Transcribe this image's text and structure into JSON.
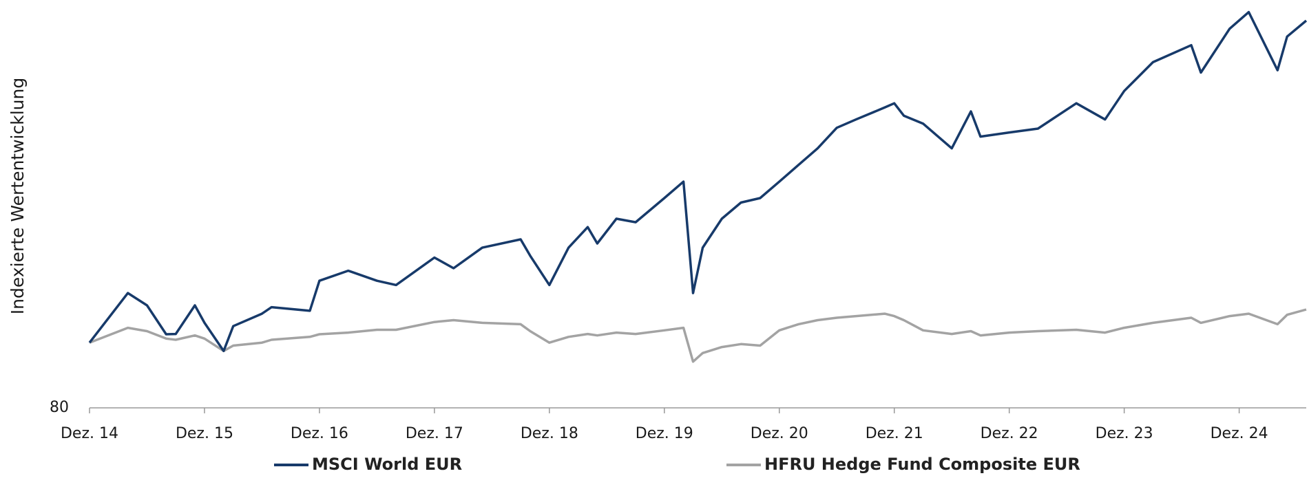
{
  "chart_data": {
    "type": "line",
    "y_label": "Indexierte Wertentwicklung",
    "log_scale": true,
    "grid": false,
    "legend_position": "bottom",
    "x": [
      "2014-12",
      "2015-04",
      "2015-06",
      "2015-08",
      "2015-09",
      "2015-11",
      "2015-12",
      "2016-02",
      "2016-03",
      "2016-06",
      "2016-07",
      "2016-11",
      "2016-12",
      "2017-03",
      "2017-06",
      "2017-08",
      "2017-12",
      "2018-02",
      "2018-05",
      "2018-09",
      "2018-10",
      "2018-12",
      "2019-02",
      "2019-04",
      "2019-05",
      "2019-07",
      "2019-09",
      "2019-12",
      "2020-02",
      "2020-03",
      "2020-04",
      "2020-06",
      "2020-08",
      "2020-10",
      "2020-12",
      "2021-02",
      "2021-04",
      "2021-06",
      "2021-08",
      "2021-11",
      "2021-12",
      "2022-01",
      "2022-03",
      "2022-06",
      "2022-08",
      "2022-09",
      "2022-12",
      "2023-03",
      "2023-07",
      "2023-10",
      "2023-12",
      "2024-03",
      "2024-07",
      "2024-08",
      "2024-11",
      "2025-01",
      "2025-04",
      "2025-05",
      "2025-07"
    ],
    "series": [
      {
        "name": "MSCI World EUR",
        "color": "#173a6a",
        "values": [
          100,
          118.5,
          113.6,
          102.9,
          103,
          113.6,
          107,
          97.2,
          105.8,
          110.4,
          112.9,
          111.5,
          123.6,
          127.9,
          123.6,
          121.8,
          133.8,
          129,
          138.4,
          142.4,
          134.6,
          121.8,
          138.4,
          148.5,
          140.4,
          152.8,
          151,
          164,
          173.5,
          118.5,
          138.4,
          152.8,
          161.5,
          164,
          173.5,
          183.7,
          194.4,
          208.6,
          214.6,
          223.6,
          226.8,
          217.4,
          211.6,
          194.4,
          220.6,
          202.4,
          205.3,
          208,
          226.8,
          214.6,
          236.6,
          261.1,
          276.7,
          252,
          292.7,
          309.9,
          254,
          285,
          301
        ]
      },
      {
        "name": "HFRU Hedge Fund Composite EUR",
        "color": "#a3a3a3",
        "values": [
          100,
          105.2,
          104,
          101.4,
          101,
          102.5,
          101.4,
          97.2,
          99,
          100,
          101,
          102,
          102.9,
          103.5,
          104.5,
          104.5,
          107.3,
          108,
          107,
          106.5,
          104,
          100,
          102,
          103,
          102.5,
          103.5,
          103,
          104.3,
          105.2,
          93.7,
          96.5,
          98.5,
          99.5,
          99,
          104.3,
          106.5,
          108,
          108.9,
          109.5,
          110.4,
          109.5,
          108,
          104.3,
          103,
          104,
          102.5,
          103.5,
          104,
          104.5,
          103.5,
          105.2,
          107,
          108.9,
          107,
          109.5,
          110.4,
          106.5,
          110,
          112
        ]
      }
    ],
    "xlim": [
      "2014-12",
      "2025-07"
    ],
    "xticks": [
      {
        "value": "2014-12",
        "label": "Dez. 14"
      },
      {
        "value": "2015-12",
        "label": "Dez. 15"
      },
      {
        "value": "2016-12",
        "label": "Dez. 16"
      },
      {
        "value": "2017-12",
        "label": "Dez. 17"
      },
      {
        "value": "2018-12",
        "label": "Dez. 18"
      },
      {
        "value": "2019-12",
        "label": "Dez. 19"
      },
      {
        "value": "2020-12",
        "label": "Dez. 20"
      },
      {
        "value": "2021-12",
        "label": "Dez. 21"
      },
      {
        "value": "2022-12",
        "label": "Dez. 22"
      },
      {
        "value": "2023-12",
        "label": "Dez. 23"
      },
      {
        "value": "2024-12",
        "label": "Dez. 24"
      }
    ],
    "ylim": [
      80,
      314
    ],
    "yticks": [
      80
    ]
  }
}
